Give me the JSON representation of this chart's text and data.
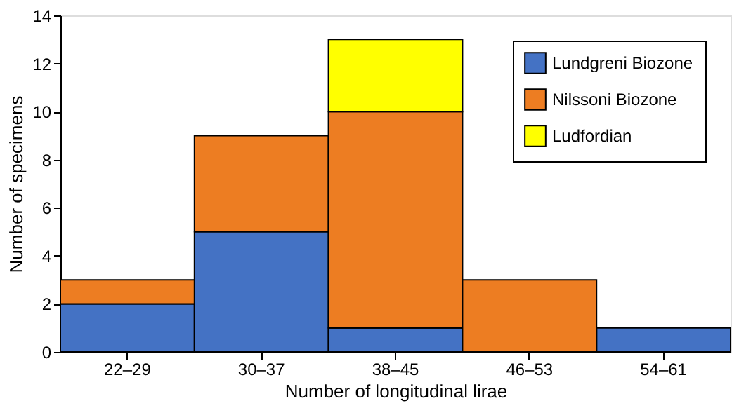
{
  "chart_data": {
    "type": "bar",
    "stacked": true,
    "xlabel": "Number of longitudinal lirae",
    "ylabel": "Number of specimens",
    "categories": [
      "22–29",
      "30–37",
      "38–45",
      "46–53",
      "54–61"
    ],
    "series": [
      {
        "name": "Lundgreni Biozone",
        "color": "#4472c4",
        "values": [
          2,
          5,
          1,
          0,
          1
        ]
      },
      {
        "name": "Nilssoni Biozone",
        "color": "#ed7d22",
        "values": [
          1,
          4,
          9,
          3,
          0
        ]
      },
      {
        "name": "Ludfordian",
        "color": "#ffff00",
        "values": [
          0,
          0,
          3,
          0,
          0
        ]
      }
    ],
    "ylim": [
      0,
      14
    ],
    "yticks": [
      0,
      2,
      4,
      6,
      8,
      10,
      12,
      14
    ],
    "grid": false,
    "legend": "top right"
  }
}
